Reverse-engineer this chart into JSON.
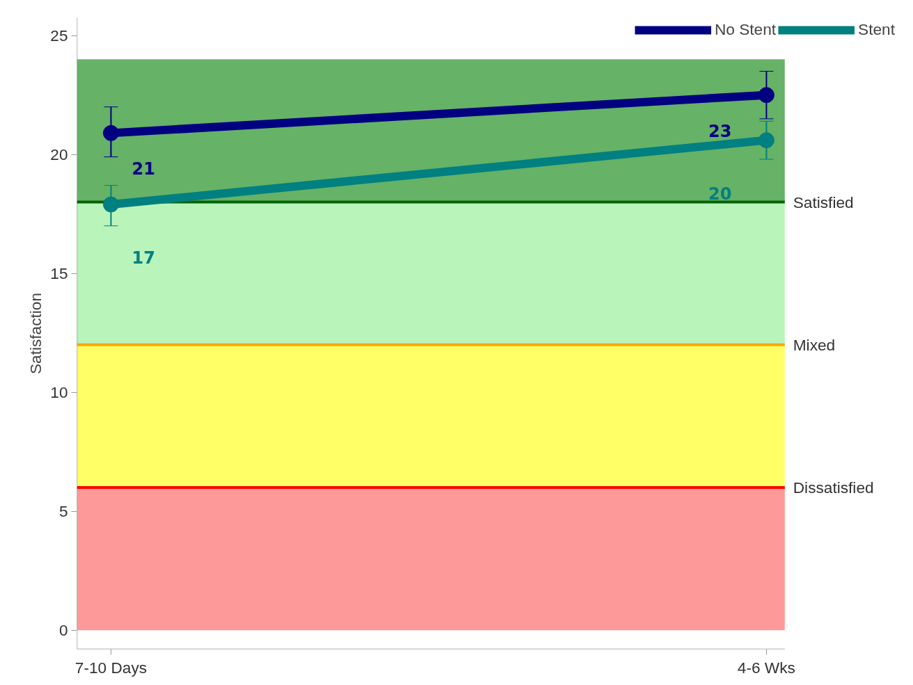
{
  "chart_data": {
    "type": "line",
    "ylabel": "Satisfaction",
    "categories": [
      "7-10 Days",
      "4-6 Wks"
    ],
    "series": [
      {
        "name": "No Stent",
        "color": "#000080",
        "values": [
          20.9,
          22.5
        ],
        "errors": [
          [
            19.9,
            22.0
          ],
          [
            21.5,
            23.5
          ]
        ]
      },
      {
        "name": "Stent",
        "color": "#008080",
        "values": [
          17.9,
          20.6
        ],
        "errors": [
          [
            17.0,
            18.7
          ],
          [
            19.8,
            21.4
          ]
        ]
      }
    ],
    "annotations": [
      "21",
      "23",
      "17",
      "20"
    ],
    "ylim": [
      -0.8,
      25.75
    ],
    "yticks": [
      0,
      5,
      10,
      15,
      20,
      25
    ],
    "bands": [
      {
        "axis": "y",
        "from": 0,
        "to": 6,
        "color": "#fe9999"
      },
      {
        "axis": "y",
        "from": 6,
        "to": 12,
        "color": "#ffff66"
      },
      {
        "axis": "y",
        "from": 12,
        "to": 18,
        "color": "#b9f4bb"
      },
      {
        "axis": "y",
        "from": 18,
        "to": 24,
        "color": "#66b266"
      }
    ],
    "ref_lines": [
      {
        "axis": "y",
        "value": 18,
        "label": "Satisfied",
        "color": "#006400"
      },
      {
        "axis": "y",
        "value": 12,
        "label": "Mixed",
        "color": "#ffa500"
      },
      {
        "axis": "y",
        "value": 6,
        "label": "Dissatisfied",
        "color": "#ff0000"
      }
    ],
    "grid": false,
    "legend": "top right",
    "marker": "circle",
    "line_style": "solid"
  }
}
